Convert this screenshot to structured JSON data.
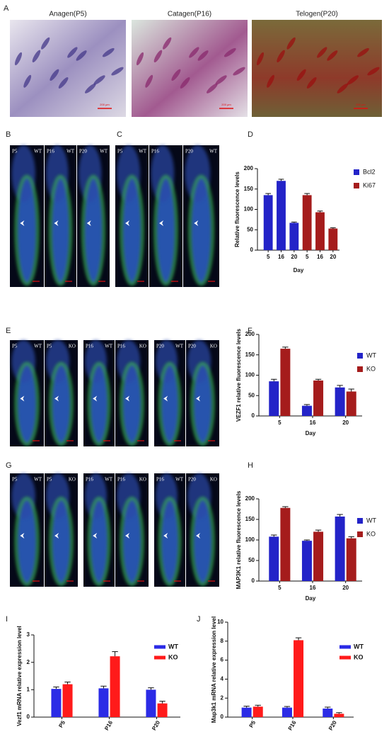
{
  "letters": [
    "A",
    "B",
    "C",
    "D",
    "E",
    "F",
    "G",
    "H",
    "I",
    "J"
  ],
  "panel_a": [
    {
      "title": "Anagen(P5)",
      "scale_bar": "200 μm"
    },
    {
      "title": "Catagen(P16)",
      "scale_bar": "200 μm"
    },
    {
      "title": "Telogen(P20)",
      "scale_bar": "200 μm"
    }
  ],
  "micrographs": {
    "B": [
      {
        "left": "P5",
        "right": "WT"
      },
      {
        "left": "P16",
        "right": "WT"
      },
      {
        "left": "P20",
        "right": "WT"
      }
    ],
    "C": [
      {
        "left": "P5",
        "right": "WT"
      },
      {
        "left": "P16"
      },
      {
        "left": "P20",
        "right": "WT"
      }
    ],
    "E": [
      {
        "left": "P5",
        "right": "WT"
      },
      {
        "left": "P5",
        "right": "KO"
      },
      {
        "left": "P16",
        "right": "WT"
      },
      {
        "left": "P16",
        "right": "KO"
      },
      {
        "left": "P20",
        "right": "WT"
      },
      {
        "left": "P20",
        "right": "KO"
      }
    ],
    "G": [
      {
        "left": "P5",
        "right": "WT"
      },
      {
        "left": "P5",
        "right": "KO"
      },
      {
        "left": "P16",
        "right": "WT"
      },
      {
        "left": "P16",
        "right": "KO"
      },
      {
        "left": "P16",
        "right": "WT"
      },
      {
        "left": "P20",
        "right": "KO"
      }
    ]
  },
  "chart_data": [
    {
      "type": "bar",
      "y_label": "Relative fluorescence levels",
      "x_label": "Day",
      "categories": [
        "5",
        "16",
        "20",
        "5",
        "16",
        "20"
      ],
      "ylim": [
        0,
        200
      ],
      "yticks": [
        0,
        50,
        100,
        150,
        200
      ],
      "series": [
        {
          "name": "Bcl2",
          "color": "#2323c8",
          "values": [
            135,
            170,
            67,
            null,
            null,
            null
          ],
          "errors": [
            4,
            4,
            2,
            null,
            null,
            null
          ]
        },
        {
          "name": "Ki67",
          "color": "#a51c1c",
          "values": [
            null,
            null,
            null,
            135,
            93,
            53
          ],
          "errors": [
            null,
            null,
            null,
            4,
            3,
            2
          ]
        }
      ]
    },
    {
      "type": "bar",
      "y_label": "VEZF1 relative fluorescence levels",
      "x_label": "Day",
      "categories": [
        "5",
        "16",
        "20"
      ],
      "ylim": [
        0,
        200
      ],
      "yticks": [
        0,
        50,
        100,
        150,
        200
      ],
      "series": [
        {
          "name": "WT",
          "color": "#2323c8",
          "values": [
            85,
            25,
            70
          ],
          "errors": [
            5,
            3,
            5
          ]
        },
        {
          "name": "KO",
          "color": "#a51c1c",
          "values": [
            165,
            87,
            60
          ],
          "errors": [
            4,
            3,
            6
          ]
        }
      ]
    },
    {
      "type": "bar",
      "y_label": "MAP3K1 relative fluorescence levels",
      "x_label": "Day",
      "categories": [
        "5",
        "16",
        "20"
      ],
      "ylim": [
        0,
        200
      ],
      "yticks": [
        0,
        50,
        100,
        150,
        200
      ],
      "series": [
        {
          "name": "WT",
          "color": "#2323c8",
          "values": [
            108,
            98,
            157
          ],
          "errors": [
            4,
            2,
            5
          ]
        },
        {
          "name": "KO",
          "color": "#a51c1c",
          "values": [
            178,
            120,
            104
          ],
          "errors": [
            3,
            4,
            4
          ]
        }
      ]
    },
    {
      "type": "bar",
      "y_label": "Vezf1 mRNA relative expression level",
      "categories": [
        "P5",
        "P16",
        "P20"
      ],
      "ylim": [
        0,
        3
      ],
      "yticks": [
        0,
        1,
        2,
        3
      ],
      "series": [
        {
          "name": "WT",
          "color": "#2b2be6",
          "values": [
            1.03,
            1.05,
            1.0
          ],
          "errors": [
            0.07,
            0.08,
            0.07
          ]
        },
        {
          "name": "KO",
          "color": "#ff1a1a",
          "values": [
            1.2,
            2.22,
            0.5
          ],
          "errors": [
            0.08,
            0.17,
            0.08
          ]
        }
      ]
    },
    {
      "type": "bar",
      "y_label": "Map3k1 mRNA relative expression level",
      "categories": [
        "P5",
        "P16",
        "P20"
      ],
      "ylim": [
        0,
        10
      ],
      "yticks": [
        0,
        2,
        4,
        6,
        8,
        10
      ],
      "series": [
        {
          "name": "WT",
          "color": "#2b2be6",
          "values": [
            1.0,
            1.0,
            0.9
          ],
          "errors": [
            0.15,
            0.12,
            0.15
          ]
        },
        {
          "name": "KO",
          "color": "#ff1a1a",
          "values": [
            1.1,
            8.1,
            0.35
          ],
          "errors": [
            0.15,
            0.25,
            0.12
          ]
        }
      ]
    }
  ]
}
